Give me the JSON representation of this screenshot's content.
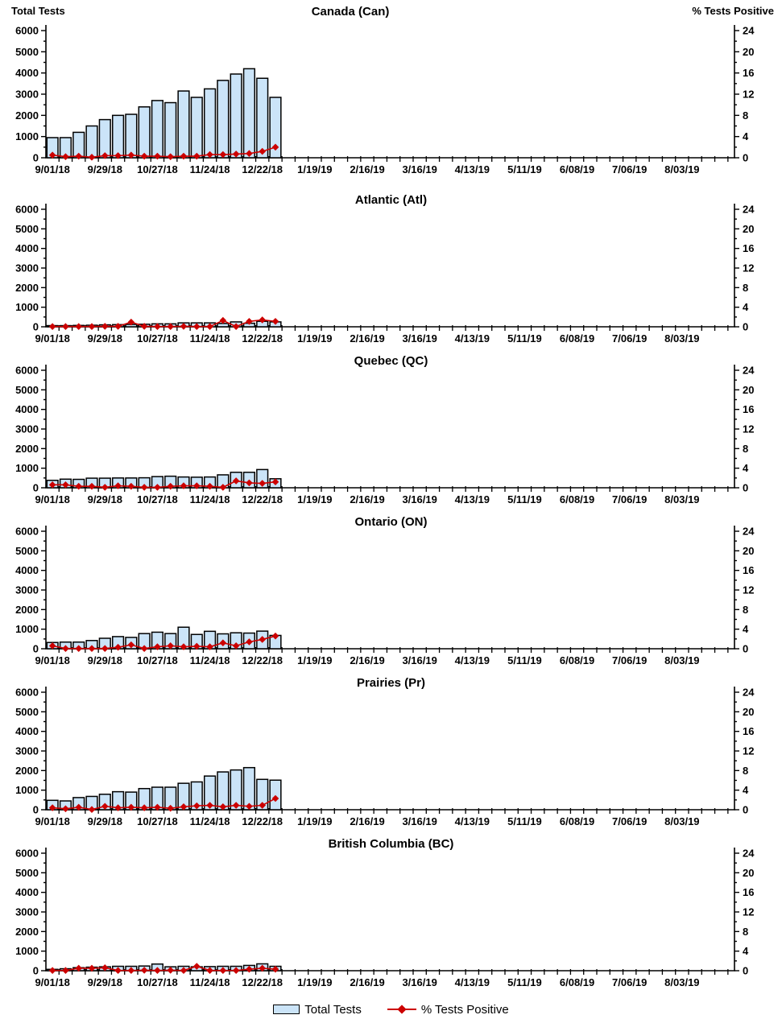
{
  "header": {
    "left_axis_title": "Total Tests",
    "right_axis_title": "% Tests Positive"
  },
  "legend": {
    "items": [
      {
        "label": "Total Tests",
        "swatch": "bar"
      },
      {
        "label": "% Tests Positive",
        "swatch": "line-diamond"
      }
    ]
  },
  "colors": {
    "bar_fill": "#CBE4F8",
    "bar_stroke": "#000000",
    "line": "#CC0000",
    "axis": "#000000",
    "text": "#000000"
  },
  "axes": {
    "left_label": "Total Tests",
    "right_label": "% Tests Positive",
    "left_min": 0,
    "left_max": 6000,
    "left_major": 1000,
    "left_minor": 500,
    "right_min": 0,
    "right_max": 24,
    "right_major": 4,
    "right_minor": 2,
    "x_total_weeks": 52.5,
    "x_label_interval": 4,
    "x_tick_labels": [
      "9/01/18",
      "9/29/18",
      "10/27/18",
      "11/24/18",
      "12/22/18",
      "1/19/19",
      "2/16/19",
      "3/16/19",
      "4/13/19",
      "5/11/19",
      "6/08/19",
      "7/06/19",
      "8/03/19"
    ],
    "grid": false,
    "legend_position": "bottom"
  },
  "chart_data": [
    {
      "type": "bar+line",
      "title": "Canada (Can)",
      "x": [
        "9/01/18",
        "9/08/18",
        "9/15/18",
        "9/22/18",
        "9/29/18",
        "10/06/18",
        "10/13/18",
        "10/20/18",
        "10/27/18",
        "11/03/18",
        "11/10/18",
        "11/17/18",
        "11/24/18",
        "12/01/18",
        "12/08/18",
        "12/15/18",
        "12/22/18",
        "12/29/18"
      ],
      "series": [
        {
          "name": "Total Tests",
          "type": "bar",
          "axis": "left",
          "values": [
            950,
            950,
            1200,
            1500,
            1800,
            2000,
            2050,
            2400,
            2700,
            2600,
            3150,
            2850,
            3250,
            3650,
            3950,
            4200,
            3750,
            2850
          ]
        },
        {
          "name": "% Tests Positive",
          "type": "line",
          "axis": "right",
          "values": [
            0.5,
            0.2,
            0.3,
            0.1,
            0.4,
            0.4,
            0.5,
            0.3,
            0.3,
            0.2,
            0.3,
            0.3,
            0.6,
            0.6,
            0.7,
            0.8,
            1.2,
            2.0
          ]
        }
      ]
    },
    {
      "type": "bar+line",
      "title": "Atlantic (Atl)",
      "x": [
        "9/01/18",
        "9/08/18",
        "9/15/18",
        "9/22/18",
        "9/29/18",
        "10/06/18",
        "10/13/18",
        "10/20/18",
        "10/27/18",
        "11/03/18",
        "11/10/18",
        "11/17/18",
        "11/24/18",
        "12/01/18",
        "12/08/18",
        "12/15/18",
        "12/22/18",
        "12/29/18"
      ],
      "series": [
        {
          "name": "Total Tests",
          "type": "bar",
          "axis": "left",
          "values": [
            60,
            60,
            70,
            80,
            100,
            110,
            120,
            130,
            150,
            150,
            200,
            200,
            200,
            170,
            250,
            180,
            280,
            250
          ]
        },
        {
          "name": "% Tests Positive",
          "type": "line",
          "axis": "right",
          "values": [
            0.05,
            0.05,
            0.05,
            0.05,
            0.1,
            0.1,
            0.95,
            0.1,
            0.05,
            0.05,
            0.1,
            0.05,
            0.05,
            1.3,
            0.05,
            1.1,
            1.4,
            1.1
          ]
        }
      ]
    },
    {
      "type": "bar+line",
      "title": "Quebec (QC)",
      "x": [
        "9/01/18",
        "9/08/18",
        "9/15/18",
        "9/22/18",
        "9/29/18",
        "10/06/18",
        "10/13/18",
        "10/20/18",
        "10/27/18",
        "11/03/18",
        "11/10/18",
        "11/17/18",
        "11/24/18",
        "12/01/18",
        "12/08/18",
        "12/15/18",
        "12/22/18",
        "12/29/18"
      ],
      "series": [
        {
          "name": "Total Tests",
          "type": "bar",
          "axis": "left",
          "values": [
            380,
            440,
            430,
            490,
            490,
            500,
            500,
            510,
            570,
            590,
            550,
            540,
            550,
            660,
            790,
            790,
            930,
            460
          ]
        },
        {
          "name": "% Tests Positive",
          "type": "line",
          "axis": "right",
          "values": [
            0.6,
            0.6,
            0.3,
            0.3,
            0.1,
            0.4,
            0.3,
            0.1,
            0.1,
            0.3,
            0.4,
            0.4,
            0.3,
            0.1,
            1.4,
            1.0,
            0.9,
            1.2
          ]
        }
      ]
    },
    {
      "type": "bar+line",
      "title": "Ontario (ON)",
      "x": [
        "9/01/18",
        "9/08/18",
        "9/15/18",
        "9/22/18",
        "9/29/18",
        "10/06/18",
        "10/13/18",
        "10/20/18",
        "10/27/18",
        "11/03/18",
        "11/10/18",
        "11/17/18",
        "11/24/18",
        "12/01/18",
        "12/08/18",
        "12/15/18",
        "12/22/18",
        "12/29/18"
      ],
      "series": [
        {
          "name": "Total Tests",
          "type": "bar",
          "axis": "left",
          "values": [
            320,
            340,
            340,
            420,
            535,
            620,
            580,
            775,
            845,
            775,
            1100,
            730,
            890,
            760,
            815,
            800,
            900,
            680
          ]
        },
        {
          "name": "% Tests Positive",
          "type": "line",
          "axis": "right",
          "values": [
            0.6,
            0.05,
            0.05,
            0.05,
            0.05,
            0.3,
            0.8,
            0.05,
            0.4,
            0.6,
            0.4,
            0.5,
            0.4,
            1.2,
            0.6,
            1.4,
            1.9,
            2.6
          ]
        }
      ]
    },
    {
      "type": "bar+line",
      "title": "Prairies (Pr)",
      "x": [
        "9/01/18",
        "9/08/18",
        "9/15/18",
        "9/22/18",
        "9/29/18",
        "10/06/18",
        "10/13/18",
        "10/20/18",
        "10/27/18",
        "11/03/18",
        "11/10/18",
        "11/17/18",
        "11/24/18",
        "12/01/18",
        "12/08/18",
        "12/15/18",
        "12/22/18",
        "12/29/18"
      ],
      "series": [
        {
          "name": "Total Tests",
          "type": "bar",
          "axis": "left",
          "values": [
            480,
            450,
            620,
            680,
            790,
            920,
            900,
            1080,
            1150,
            1150,
            1350,
            1420,
            1720,
            1930,
            2030,
            2150,
            1550,
            1510
          ]
        },
        {
          "name": "% Tests Positive",
          "type": "line",
          "axis": "right",
          "values": [
            0.4,
            0.2,
            0.5,
            0.05,
            0.7,
            0.4,
            0.5,
            0.4,
            0.5,
            0.3,
            0.6,
            0.8,
            0.9,
            0.6,
            0.9,
            0.7,
            0.9,
            2.3
          ]
        }
      ]
    },
    {
      "type": "bar+line",
      "title": "British Columbia (BC)",
      "x": [
        "9/01/18",
        "9/08/18",
        "9/15/18",
        "9/22/18",
        "9/29/18",
        "10/06/18",
        "10/13/18",
        "10/20/18",
        "10/27/18",
        "11/03/18",
        "11/10/18",
        "11/17/18",
        "11/24/18",
        "12/01/18",
        "12/08/18",
        "12/15/18",
        "12/22/18",
        "12/29/18"
      ],
      "series": [
        {
          "name": "Total Tests",
          "type": "bar",
          "axis": "left",
          "values": [
            70,
            100,
            155,
            180,
            200,
            225,
            225,
            240,
            340,
            200,
            225,
            200,
            210,
            225,
            225,
            270,
            350,
            225
          ]
        },
        {
          "name": "% Tests Positive",
          "type": "line",
          "axis": "right",
          "values": [
            0.05,
            0.05,
            0.5,
            0.5,
            0.6,
            0.05,
            0.05,
            0.1,
            0.05,
            0.1,
            0.05,
            0.9,
            0.05,
            0.05,
            0.05,
            0.3,
            0.5,
            0.3
          ]
        }
      ]
    }
  ]
}
